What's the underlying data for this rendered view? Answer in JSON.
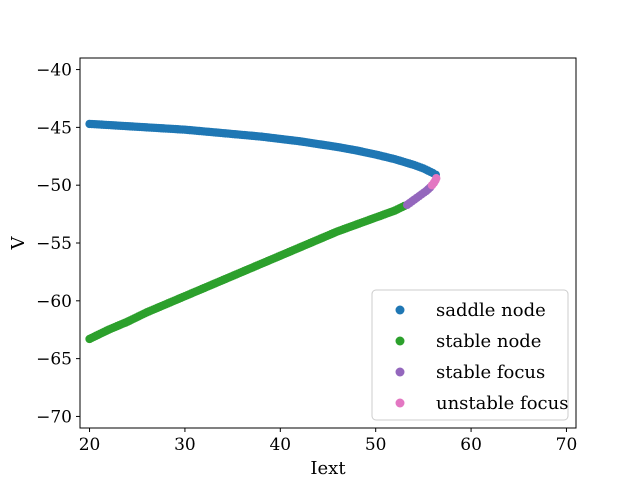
{
  "chart_data": {
    "type": "scatter",
    "title": "",
    "xlabel": "Iext",
    "ylabel": "V",
    "xlim": [
      19,
      71
    ],
    "ylim": [
      -71,
      -39
    ],
    "xticks": [
      20,
      30,
      40,
      50,
      60,
      70
    ],
    "yticks": [
      -40,
      -45,
      -50,
      -55,
      -60,
      -65,
      -70
    ],
    "grid": false,
    "legend_position": "bottom-right",
    "series": [
      {
        "name": "saddle node",
        "color": "#1f77b4",
        "points": [
          [
            20.0,
            -44.7
          ],
          [
            22.0,
            -44.8
          ],
          [
            24.0,
            -44.9
          ],
          [
            26.0,
            -45.0
          ],
          [
            28.0,
            -45.1
          ],
          [
            30.0,
            -45.2
          ],
          [
            32.0,
            -45.35
          ],
          [
            34.0,
            -45.5
          ],
          [
            36.0,
            -45.65
          ],
          [
            38.0,
            -45.8
          ],
          [
            40.0,
            -46.0
          ],
          [
            42.0,
            -46.2
          ],
          [
            44.0,
            -46.45
          ],
          [
            46.0,
            -46.7
          ],
          [
            48.0,
            -47.0
          ],
          [
            50.0,
            -47.35
          ],
          [
            52.0,
            -47.75
          ],
          [
            53.0,
            -48.0
          ],
          [
            54.0,
            -48.25
          ],
          [
            55.0,
            -48.55
          ],
          [
            55.5,
            -48.75
          ],
          [
            56.0,
            -48.95
          ],
          [
            56.3,
            -49.1
          ]
        ]
      },
      {
        "name": "stable node",
        "color": "#2ca02c",
        "points": [
          [
            20.0,
            -63.3
          ],
          [
            22.0,
            -62.5
          ],
          [
            24.0,
            -61.8
          ],
          [
            26.0,
            -61.0
          ],
          [
            28.0,
            -60.3
          ],
          [
            30.0,
            -59.6
          ],
          [
            32.0,
            -58.9
          ],
          [
            34.0,
            -58.2
          ],
          [
            36.0,
            -57.5
          ],
          [
            38.0,
            -56.8
          ],
          [
            40.0,
            -56.1
          ],
          [
            42.0,
            -55.4
          ],
          [
            44.0,
            -54.7
          ],
          [
            46.0,
            -54.0
          ],
          [
            48.0,
            -53.4
          ],
          [
            50.0,
            -52.8
          ],
          [
            52.0,
            -52.2
          ],
          [
            53.0,
            -51.8
          ]
        ]
      },
      {
        "name": "stable focus",
        "color": "#9467bd",
        "points": [
          [
            53.3,
            -51.7
          ],
          [
            53.8,
            -51.4
          ],
          [
            54.3,
            -51.1
          ],
          [
            54.8,
            -50.8
          ],
          [
            55.3,
            -50.5
          ],
          [
            55.7,
            -50.2
          ]
        ]
      },
      {
        "name": "unstable focus",
        "color": "#e377c2",
        "points": [
          [
            55.9,
            -50.0
          ],
          [
            56.1,
            -49.8
          ],
          [
            56.25,
            -49.6
          ],
          [
            56.35,
            -49.4
          ]
        ]
      }
    ]
  }
}
